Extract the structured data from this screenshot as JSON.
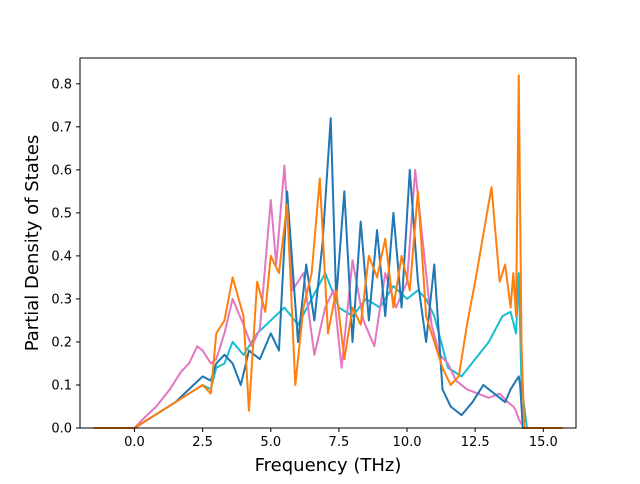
{
  "chart_data": {
    "type": "line",
    "title": "",
    "xlabel": "Frequency (THz)",
    "ylabel": "Partial Density of States",
    "xlim": [
      -2.0,
      16.2
    ],
    "ylim": [
      0.0,
      0.86
    ],
    "xticks": [
      0.0,
      2.5,
      5.0,
      7.5,
      10.0,
      12.5,
      15.0
    ],
    "xtick_labels": [
      "0.0",
      "2.5",
      "5.0",
      "7.5",
      "10.0",
      "12.5",
      "15.0"
    ],
    "yticks": [
      0.0,
      0.1,
      0.2,
      0.3,
      0.4,
      0.5,
      0.6,
      0.7,
      0.8
    ],
    "ytick_labels": [
      "0.0",
      "0.1",
      "0.2",
      "0.3",
      "0.4",
      "0.5",
      "0.6",
      "0.7",
      "0.8"
    ],
    "grid": false,
    "legend": "none",
    "series": [
      {
        "color": "#17becf",
        "x": [
          -1.5,
          0.0,
          0.5,
          1.0,
          1.5,
          2.0,
          2.5,
          2.8,
          3.0,
          3.3,
          3.6,
          4.0,
          4.5,
          5.0,
          5.5,
          6.0,
          6.5,
          7.0,
          7.5,
          8.0,
          8.5,
          9.0,
          9.5,
          10.0,
          10.4,
          10.7,
          11.0,
          11.5,
          12.0,
          12.5,
          13.0,
          13.5,
          13.8,
          14.0,
          14.1,
          14.2,
          14.4,
          15.7
        ],
        "y": [
          0.0,
          0.0,
          0.02,
          0.04,
          0.06,
          0.08,
          0.1,
          0.09,
          0.14,
          0.15,
          0.2,
          0.17,
          0.22,
          0.25,
          0.28,
          0.24,
          0.3,
          0.36,
          0.28,
          0.26,
          0.3,
          0.28,
          0.33,
          0.3,
          0.32,
          0.3,
          0.26,
          0.14,
          0.12,
          0.16,
          0.2,
          0.26,
          0.27,
          0.22,
          0.36,
          0.1,
          0.0,
          0.0
        ]
      },
      {
        "color": "#e377c2",
        "x": [
          -1.5,
          0.0,
          0.3,
          0.8,
          1.3,
          1.7,
          2.0,
          2.3,
          2.5,
          2.8,
          3.0,
          3.3,
          3.6,
          4.0,
          4.3,
          4.6,
          5.0,
          5.2,
          5.5,
          5.8,
          6.2,
          6.6,
          7.0,
          7.3,
          7.6,
          8.0,
          8.4,
          8.8,
          9.2,
          9.6,
          10.0,
          10.3,
          10.6,
          10.9,
          11.2,
          11.5,
          11.8,
          12.2,
          12.6,
          13.0,
          13.4,
          13.7,
          13.9,
          14.0,
          14.1,
          14.2,
          14.3,
          15.7
        ],
        "y": [
          0.0,
          0.0,
          0.02,
          0.05,
          0.09,
          0.13,
          0.15,
          0.19,
          0.18,
          0.15,
          0.16,
          0.22,
          0.3,
          0.24,
          0.19,
          0.23,
          0.53,
          0.38,
          0.61,
          0.32,
          0.36,
          0.17,
          0.28,
          0.32,
          0.14,
          0.39,
          0.25,
          0.19,
          0.36,
          0.28,
          0.34,
          0.6,
          0.42,
          0.24,
          0.17,
          0.15,
          0.11,
          0.09,
          0.08,
          0.07,
          0.08,
          0.06,
          0.05,
          0.04,
          0.02,
          0.01,
          0.0,
          0.0
        ]
      },
      {
        "color": "#1f77b4",
        "x": [
          -1.5,
          0.0,
          0.5,
          1.0,
          1.5,
          2.0,
          2.5,
          2.8,
          3.0,
          3.3,
          3.6,
          3.9,
          4.2,
          4.6,
          5.0,
          5.3,
          5.6,
          6.0,
          6.3,
          6.6,
          6.9,
          7.2,
          7.4,
          7.7,
          8.0,
          8.3,
          8.6,
          8.9,
          9.2,
          9.5,
          9.8,
          10.1,
          10.4,
          10.7,
          11.0,
          11.3,
          11.6,
          12.0,
          12.4,
          12.8,
          13.2,
          13.6,
          13.8,
          14.0,
          14.1,
          14.15,
          14.25,
          15.7
        ],
        "y": [
          0.0,
          0.0,
          0.02,
          0.04,
          0.06,
          0.09,
          0.12,
          0.11,
          0.15,
          0.17,
          0.15,
          0.1,
          0.18,
          0.16,
          0.22,
          0.18,
          0.55,
          0.2,
          0.38,
          0.25,
          0.43,
          0.72,
          0.3,
          0.55,
          0.2,
          0.48,
          0.25,
          0.46,
          0.26,
          0.5,
          0.28,
          0.6,
          0.34,
          0.2,
          0.38,
          0.09,
          0.05,
          0.03,
          0.06,
          0.1,
          0.08,
          0.06,
          0.09,
          0.11,
          0.12,
          0.1,
          0.0,
          0.0
        ]
      },
      {
        "color": "#ff7f0e",
        "x": [
          -1.5,
          0.0,
          0.5,
          1.0,
          1.5,
          2.0,
          2.5,
          2.8,
          3.0,
          3.3,
          3.6,
          4.0,
          4.2,
          4.5,
          4.8,
          5.0,
          5.3,
          5.6,
          5.9,
          6.2,
          6.5,
          6.8,
          7.1,
          7.4,
          7.7,
          8.0,
          8.3,
          8.6,
          8.9,
          9.2,
          9.5,
          9.8,
          10.1,
          10.4,
          10.7,
          11.0,
          11.3,
          11.6,
          11.9,
          12.2,
          12.5,
          12.8,
          13.1,
          13.4,
          13.6,
          13.8,
          13.9,
          14.0,
          14.1,
          14.2,
          14.3,
          15.7
        ],
        "y": [
          0.0,
          0.0,
          0.02,
          0.04,
          0.06,
          0.08,
          0.1,
          0.08,
          0.22,
          0.25,
          0.35,
          0.26,
          0.04,
          0.34,
          0.27,
          0.4,
          0.36,
          0.52,
          0.1,
          0.28,
          0.36,
          0.58,
          0.22,
          0.32,
          0.16,
          0.28,
          0.24,
          0.4,
          0.35,
          0.44,
          0.28,
          0.4,
          0.32,
          0.55,
          0.26,
          0.2,
          0.14,
          0.1,
          0.12,
          0.24,
          0.34,
          0.45,
          0.56,
          0.34,
          0.38,
          0.28,
          0.36,
          0.26,
          0.82,
          0.2,
          0.0,
          0.0
        ]
      }
    ]
  }
}
